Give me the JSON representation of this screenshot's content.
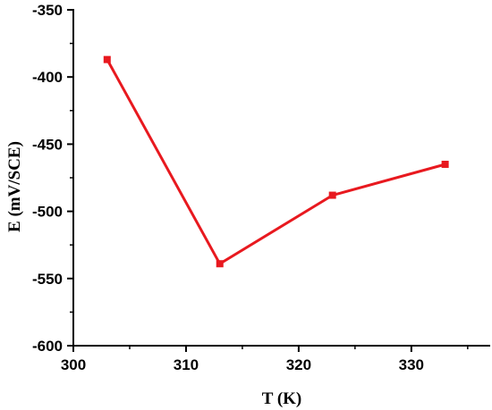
{
  "chart_data": {
    "type": "line",
    "xlabel": "T (K)",
    "ylabel": "E (mV/SCE)",
    "xlim": [
      300,
      337
    ],
    "ylim": [
      -600,
      -350
    ],
    "xticks": [
      300,
      310,
      320,
      330
    ],
    "yticks": [
      -600,
      -550,
      -500,
      -450,
      -400,
      -350
    ],
    "grid": false,
    "series": [
      {
        "x": [
          303,
          313,
          323,
          333
        ],
        "y": [
          -387,
          -539,
          -488,
          -465
        ],
        "color": "#e8191f",
        "marker": "square"
      }
    ]
  }
}
